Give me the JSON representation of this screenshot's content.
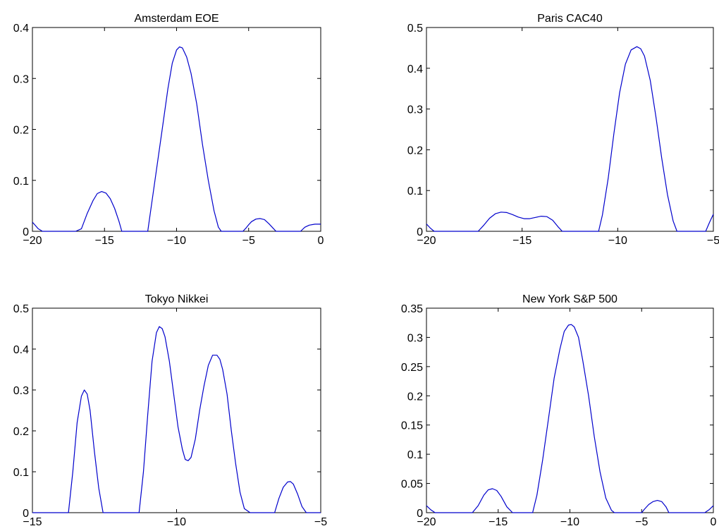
{
  "chart_data": [
    {
      "type": "line",
      "title": "Amsterdam EOE",
      "xlabel": "",
      "ylabel": "",
      "xlim": [
        -20,
        0
      ],
      "ylim": [
        0,
        0.4
      ],
      "xticks": [
        -20,
        -15,
        -10,
        -5,
        0
      ],
      "xtick_labels": [
        "−20",
        "−15",
        "−10",
        "−5",
        "0"
      ],
      "yticks": [
        0,
        0.1,
        0.2,
        0.3,
        0.4
      ],
      "ytick_labels": [
        "0",
        "0.1",
        "0.2",
        "0.3",
        "0.4"
      ],
      "grid": false,
      "series": [
        {
          "color": "#0000cc",
          "x": [
            -20,
            -19.6,
            -19.3,
            -17,
            -16.6,
            -16.2,
            -15.8,
            -15.5,
            -15.2,
            -14.9,
            -14.6,
            -14.3,
            -14,
            -13.8,
            -12,
            -11.8,
            -11.4,
            -11,
            -10.6,
            -10.3,
            -10,
            -9.8,
            -9.6,
            -9.3,
            -9,
            -8.6,
            -8.2,
            -7.8,
            -7.4,
            -7.1,
            -6.9,
            -5.4,
            -5.2,
            -5,
            -4.8,
            -4.5,
            -4.2,
            -3.9,
            -3.6,
            -3.3,
            -3.1,
            -1.4,
            -1.1,
            -0.8,
            -0.4,
            0
          ],
          "y": [
            0.018,
            0.005,
            0,
            0,
            0.005,
            0.035,
            0.06,
            0.074,
            0.078,
            0.075,
            0.064,
            0.045,
            0.02,
            0,
            0,
            0.04,
            0.12,
            0.2,
            0.28,
            0.33,
            0.356,
            0.362,
            0.36,
            0.342,
            0.31,
            0.25,
            0.17,
            0.1,
            0.04,
            0.008,
            0,
            0,
            0.006,
            0.013,
            0.019,
            0.024,
            0.025,
            0.023,
            0.015,
            0.006,
            0,
            0,
            0.008,
            0.012,
            0.014,
            0.014
          ]
        }
      ]
    },
    {
      "type": "line",
      "title": "Paris CAC40",
      "xlabel": "",
      "ylabel": "",
      "xlim": [
        -20,
        -5
      ],
      "ylim": [
        0,
        0.5
      ],
      "xticks": [
        -20,
        -15,
        -10,
        -5
      ],
      "xtick_labels": [
        "−20",
        "−15",
        "−10",
        "−5"
      ],
      "yticks": [
        0,
        0.1,
        0.2,
        0.3,
        0.4,
        0.5
      ],
      "ytick_labels": [
        "0",
        "0.1",
        "0.2",
        "0.3",
        "0.4",
        "0.5"
      ],
      "grid": false,
      "series": [
        {
          "color": "#0000cc",
          "x": [
            -20,
            -19.8,
            -19.6,
            -17.3,
            -17,
            -16.7,
            -16.4,
            -16.1,
            -15.8,
            -15.5,
            -15.2,
            -14.9,
            -14.6,
            -14.3,
            -14,
            -13.7,
            -13.4,
            -13.1,
            -12.9,
            -11,
            -10.8,
            -10.5,
            -10.2,
            -9.9,
            -9.6,
            -9.3,
            -9,
            -8.8,
            -8.6,
            -8.3,
            -8,
            -7.7,
            -7.4,
            -7.1,
            -6.9,
            -5.4,
            -5.2,
            -5
          ],
          "y": [
            0.018,
            0.008,
            0,
            0,
            0.015,
            0.032,
            0.043,
            0.047,
            0.046,
            0.041,
            0.035,
            0.031,
            0.031,
            0.034,
            0.037,
            0.036,
            0.027,
            0.01,
            0,
            0,
            0.04,
            0.13,
            0.24,
            0.34,
            0.41,
            0.445,
            0.453,
            0.448,
            0.43,
            0.37,
            0.28,
            0.18,
            0.09,
            0.025,
            0,
            0,
            0.022,
            0.042
          ]
        }
      ]
    },
    {
      "type": "line",
      "title": "Tokyo Nikkei",
      "xlabel": "",
      "ylabel": "",
      "xlim": [
        -15,
        -5
      ],
      "ylim": [
        0,
        0.5
      ],
      "xticks": [
        -15,
        -10,
        -5
      ],
      "xtick_labels": [
        "−15",
        "−10",
        "−5"
      ],
      "yticks": [
        0,
        0.1,
        0.2,
        0.3,
        0.4,
        0.5
      ],
      "ytick_labels": [
        "0",
        "0.1",
        "0.2",
        "0.3",
        "0.4",
        "0.5"
      ],
      "grid": false,
      "series": [
        {
          "color": "#0000cc",
          "x": [
            -15,
            -13.75,
            -13.6,
            -13.45,
            -13.3,
            -13.2,
            -13.1,
            -13,
            -12.85,
            -12.7,
            -12.55,
            -11.3,
            -11.15,
            -11,
            -10.85,
            -10.7,
            -10.6,
            -10.5,
            -10.4,
            -10.25,
            -10.1,
            -9.95,
            -9.8,
            -9.7,
            -9.6,
            -9.5,
            -9.35,
            -9.2,
            -9.05,
            -8.9,
            -8.75,
            -8.6,
            -8.5,
            -8.4,
            -8.25,
            -8.1,
            -7.95,
            -7.8,
            -7.65,
            -7.45,
            -6.6,
            -6.45,
            -6.3,
            -6.15,
            -6.05,
            -5.95,
            -5.8,
            -5.65,
            -5.5,
            -5
          ],
          "y": [
            0,
            0,
            0.1,
            0.22,
            0.285,
            0.3,
            0.29,
            0.25,
            0.15,
            0.06,
            0,
            0,
            0.1,
            0.24,
            0.37,
            0.44,
            0.455,
            0.45,
            0.43,
            0.37,
            0.29,
            0.21,
            0.155,
            0.13,
            0.127,
            0.135,
            0.18,
            0.25,
            0.31,
            0.36,
            0.385,
            0.385,
            0.375,
            0.35,
            0.29,
            0.2,
            0.12,
            0.05,
            0.01,
            0,
            0,
            0.035,
            0.062,
            0.075,
            0.076,
            0.07,
            0.045,
            0.015,
            0,
            0
          ]
        }
      ]
    },
    {
      "type": "line",
      "title": "New York S&P 500",
      "xlabel": "",
      "ylabel": "",
      "xlim": [
        -20,
        0
      ],
      "ylim": [
        0,
        0.35
      ],
      "xticks": [
        -20,
        -15,
        -10,
        -5,
        0
      ],
      "xtick_labels": [
        "−20",
        "−15",
        "−10",
        "−5",
        "0"
      ],
      "yticks": [
        0,
        0.05,
        0.1,
        0.15,
        0.2,
        0.25,
        0.3,
        0.35
      ],
      "ytick_labels": [
        "0",
        "0.05",
        "0.1",
        "0.15",
        "0.2",
        "0.25",
        "0.3",
        "0.35"
      ],
      "grid": false,
      "series": [
        {
          "color": "#0000cc",
          "x": [
            -20,
            -19.7,
            -19.4,
            -16.8,
            -16.4,
            -16,
            -15.7,
            -15.4,
            -15.1,
            -14.8,
            -14.4,
            -14,
            -13.9,
            -12.6,
            -12.3,
            -11.9,
            -11.5,
            -11.1,
            -10.7,
            -10.4,
            -10.1,
            -9.9,
            -9.7,
            -9.4,
            -9.1,
            -8.7,
            -8.3,
            -7.9,
            -7.5,
            -7.1,
            -6.9,
            -5,
            -4.8,
            -4.5,
            -4.2,
            -3.9,
            -3.6,
            -3.3,
            -3.1,
            -0.6,
            -0.3,
            0
          ],
          "y": [
            0.012,
            0.005,
            0,
            0,
            0.012,
            0.03,
            0.039,
            0.041,
            0.038,
            0.028,
            0.01,
            0,
            0,
            0,
            0.03,
            0.09,
            0.16,
            0.23,
            0.28,
            0.31,
            0.321,
            0.322,
            0.318,
            0.3,
            0.26,
            0.2,
            0.13,
            0.07,
            0.025,
            0.004,
            0,
            0,
            0.006,
            0.014,
            0.019,
            0.021,
            0.019,
            0.01,
            0,
            0,
            0.005,
            0.012
          ]
        }
      ]
    }
  ]
}
